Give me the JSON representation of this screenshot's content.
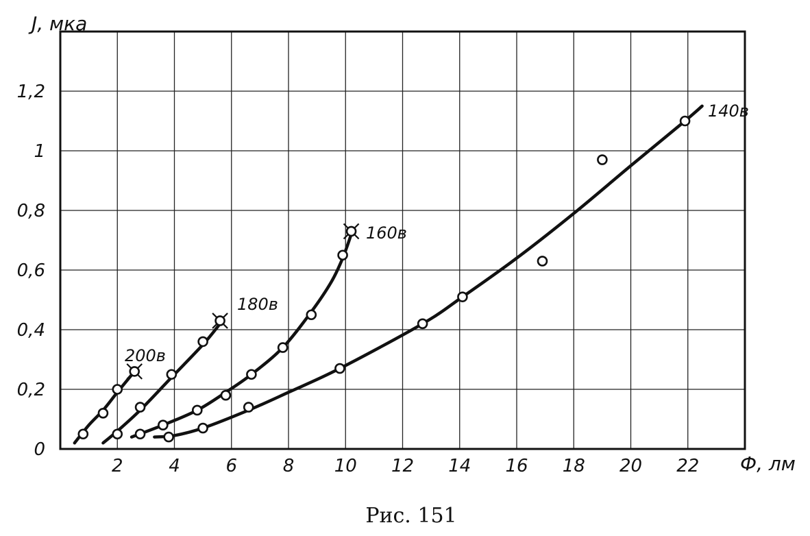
{
  "figure_caption": "Рис. 151",
  "chart_data": {
    "type": "line",
    "xlabel": "Ф, лм",
    "ylabel": "J, мка",
    "xlim": [
      0,
      24
    ],
    "ylim": [
      0,
      1.4
    ],
    "x_ticks": [
      0,
      2,
      4,
      6,
      8,
      10,
      12,
      14,
      16,
      18,
      20,
      22
    ],
    "x_tick_labels": [
      "",
      "2",
      "4",
      "6",
      "8",
      "10",
      "12",
      "14",
      "16",
      "18",
      "20",
      "22"
    ],
    "y_ticks": [
      0,
      0.2,
      0.4,
      0.6,
      0.8,
      1.0,
      1.2
    ],
    "y_tick_labels": [
      "0",
      "0,2",
      "0,4",
      "0,6",
      "0,8",
      "1",
      "1,2"
    ],
    "grid": true,
    "series": [
      {
        "name": "200в",
        "points": [
          [
            0.8,
            0.05
          ],
          [
            1.5,
            0.12
          ],
          [
            2.0,
            0.2
          ],
          [
            2.6,
            0.26
          ]
        ],
        "curve": [
          [
            0.5,
            0.02
          ],
          [
            1.0,
            0.08
          ],
          [
            1.5,
            0.13
          ],
          [
            2.0,
            0.19
          ],
          [
            2.6,
            0.26
          ]
        ]
      },
      {
        "name": "180в",
        "points": [
          [
            2.0,
            0.05
          ],
          [
            2.8,
            0.14
          ],
          [
            3.9,
            0.25
          ],
          [
            5.0,
            0.36
          ],
          [
            5.6,
            0.43
          ]
        ],
        "curve": [
          [
            1.5,
            0.02
          ],
          [
            2.0,
            0.06
          ],
          [
            2.8,
            0.13
          ],
          [
            3.9,
            0.24
          ],
          [
            5.0,
            0.35
          ],
          [
            5.6,
            0.42
          ]
        ]
      },
      {
        "name": "160в",
        "points": [
          [
            2.8,
            0.05
          ],
          [
            3.6,
            0.08
          ],
          [
            4.8,
            0.13
          ],
          [
            5.8,
            0.18
          ],
          [
            6.7,
            0.25
          ],
          [
            7.8,
            0.34
          ],
          [
            8.8,
            0.45
          ],
          [
            9.9,
            0.65
          ],
          [
            10.2,
            0.73
          ]
        ],
        "curve": [
          [
            2.5,
            0.04
          ],
          [
            3.6,
            0.08
          ],
          [
            4.8,
            0.13
          ],
          [
            5.8,
            0.19
          ],
          [
            6.7,
            0.25
          ],
          [
            7.8,
            0.34
          ],
          [
            8.8,
            0.46
          ],
          [
            9.5,
            0.56
          ],
          [
            9.9,
            0.64
          ],
          [
            10.2,
            0.72
          ]
        ]
      },
      {
        "name": "140в",
        "points": [
          [
            3.8,
            0.04
          ],
          [
            5.0,
            0.07
          ],
          [
            6.6,
            0.14
          ],
          [
            9.8,
            0.27
          ],
          [
            12.7,
            0.42
          ],
          [
            14.1,
            0.51
          ],
          [
            16.9,
            0.63
          ],
          [
            19.0,
            0.97
          ],
          [
            21.9,
            1.1
          ]
        ],
        "curve": [
          [
            3.3,
            0.04
          ],
          [
            4.0,
            0.045
          ],
          [
            5.0,
            0.07
          ],
          [
            6.6,
            0.13
          ],
          [
            8.0,
            0.19
          ],
          [
            9.8,
            0.27
          ],
          [
            12.7,
            0.42
          ],
          [
            14.1,
            0.51
          ],
          [
            16.0,
            0.64
          ],
          [
            18.0,
            0.79
          ],
          [
            20.0,
            0.95
          ],
          [
            21.9,
            1.1
          ],
          [
            22.5,
            1.15
          ]
        ]
      }
    ]
  }
}
